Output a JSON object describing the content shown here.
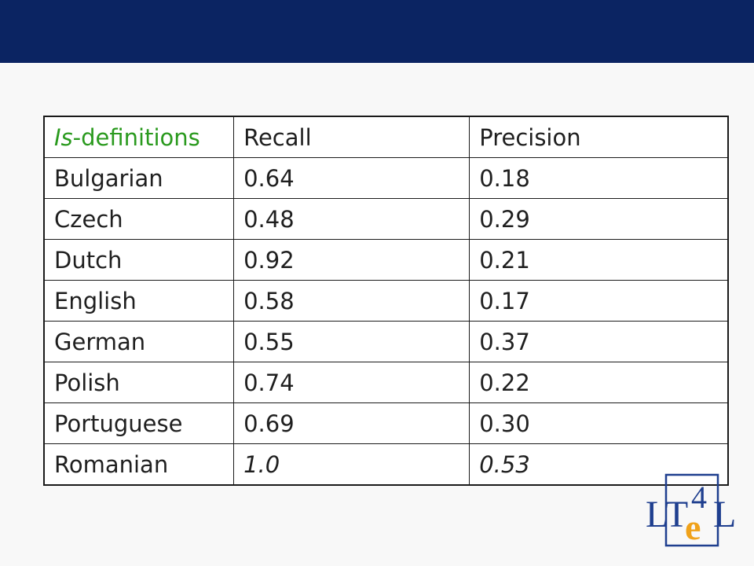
{
  "table": {
    "header": {
      "label_italic": "Is",
      "label_rest": "-definitions",
      "recall": "Recall",
      "precision": "Precision"
    },
    "rows": [
      {
        "language": "Bulgarian",
        "recall": "0.64",
        "precision": "0.18",
        "italic": false
      },
      {
        "language": "Czech",
        "recall": "0.48",
        "precision": "0.29",
        "italic": false
      },
      {
        "language": "Dutch",
        "recall": "0.92",
        "precision": "0.21",
        "italic": false
      },
      {
        "language": "English",
        "recall": "0.58",
        "precision": "0.17",
        "italic": false
      },
      {
        "language": "German",
        "recall": "0.55",
        "precision": "0.37",
        "italic": false
      },
      {
        "language": "Polish",
        "recall": "0.74",
        "precision": "0.22",
        "italic": false
      },
      {
        "language": "Portuguese",
        "recall": "0.69",
        "precision": "0.30",
        "italic": false
      },
      {
        "language": "Romanian",
        "recall": "1.0",
        "precision": "0.53",
        "italic": true
      }
    ]
  },
  "logo": {
    "text_left": "LT",
    "text_digit": "4",
    "text_right": "L",
    "text_e": "e",
    "color_blue": "#1f3f8f",
    "color_orange": "#f0a21a"
  },
  "colors": {
    "top_band": "#0b2462",
    "header_label": "#2a9a1e"
  }
}
